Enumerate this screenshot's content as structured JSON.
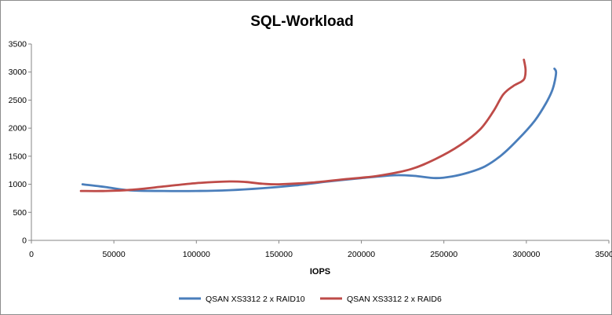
{
  "chart_data": {
    "type": "line",
    "title": "SQL-Workload",
    "xlabel": "IOPS",
    "ylabel": "",
    "xlim": [
      0,
      350000
    ],
    "ylim": [
      0,
      3500
    ],
    "x_ticks": [
      0,
      50000,
      100000,
      150000,
      200000,
      250000,
      300000,
      350000
    ],
    "y_ticks": [
      0,
      500,
      1000,
      1500,
      2000,
      2500,
      3000,
      3500
    ],
    "x_tick_labels": [
      "0",
      "50000",
      "100000",
      "150000",
      "200000",
      "250000",
      "300000",
      "350000"
    ],
    "y_tick_labels": [
      "0",
      "500",
      "1000",
      "1500",
      "2000",
      "2500",
      "3000",
      "3500"
    ],
    "grid": {
      "x": false,
      "y": false
    },
    "legend_position": "bottom",
    "series": [
      {
        "name": "QSAN XS3312 2 x RAID10",
        "color": "#4a7ebb",
        "x": [
          31000,
          45000,
          60000,
          80000,
          100000,
          120000,
          140000,
          160000,
          180000,
          200000,
          220000,
          232000,
          245000,
          255000,
          265000,
          275000,
          285000,
          295000,
          305000,
          312000,
          316000,
          318000,
          317000
        ],
        "y": [
          1000,
          950,
          890,
          880,
          880,
          895,
          930,
          980,
          1050,
          1110,
          1160,
          1150,
          1110,
          1140,
          1210,
          1320,
          1520,
          1800,
          2130,
          2450,
          2700,
          2980,
          3060
        ]
      },
      {
        "name": "QSAN XS3312 2 x RAID6",
        "color": "#be4b48",
        "x": [
          30000,
          45000,
          60000,
          80000,
          100000,
          120000,
          130000,
          140000,
          150000,
          170000,
          190000,
          210000,
          230000,
          245000,
          260000,
          272000,
          280000,
          286000,
          292000,
          297000,
          299000,
          299500,
          298500
        ],
        "y": [
          880,
          880,
          900,
          960,
          1020,
          1050,
          1040,
          1010,
          1000,
          1030,
          1090,
          1150,
          1270,
          1450,
          1700,
          1980,
          2300,
          2600,
          2750,
          2830,
          2900,
          3050,
          3220
        ]
      }
    ]
  }
}
